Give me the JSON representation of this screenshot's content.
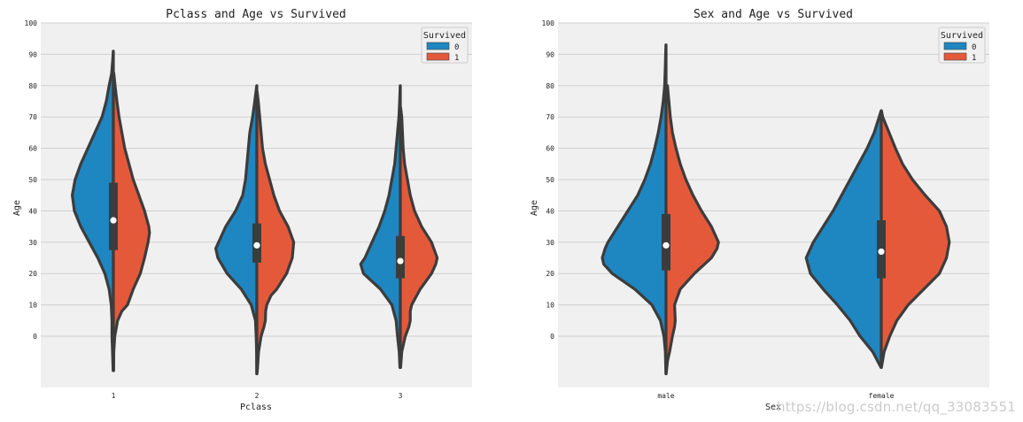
{
  "chart_data": [
    {
      "type": "violin",
      "title": "Pclass and Age vs Survived",
      "xlabel": "Pclass",
      "ylabel": "Age",
      "categories": [
        "1",
        "2",
        "3"
      ],
      "y_tick_labels": [
        "100",
        "90",
        "80",
        "70",
        "60",
        "50",
        "40",
        "30",
        "20",
        "10",
        "0"
      ],
      "ylim": [
        -12,
        102
      ],
      "split": true,
      "legend": {
        "title": "Survived",
        "position": "top-right",
        "entries": [
          {
            "label": "0",
            "color": "#1e86c0"
          },
          {
            "label": "1",
            "color": "#e5593b"
          }
        ]
      },
      "violins": [
        {
          "category": "1",
          "series_0": [
            [
              -11,
              0.2
            ],
            [
              -5,
              0.6
            ],
            [
              0,
              1
            ],
            [
              5,
              1
            ],
            [
              10,
              1.5
            ],
            [
              15,
              3
            ],
            [
              20,
              6
            ],
            [
              25,
              11
            ],
            [
              30,
              17
            ],
            [
              35,
              23
            ],
            [
              40,
              27.5
            ],
            [
              45,
              29
            ],
            [
              50,
              27
            ],
            [
              55,
              23
            ],
            [
              60,
              18
            ],
            [
              65,
              13
            ],
            [
              70,
              8
            ],
            [
              75,
              5
            ],
            [
              80,
              3
            ],
            [
              84,
              1.2
            ],
            [
              88,
              0.5
            ],
            [
              91,
              0.1
            ]
          ],
          "series_1": [
            [
              -11,
              0.2
            ],
            [
              -5,
              0.3
            ],
            [
              0,
              1
            ],
            [
              5,
              3
            ],
            [
              8,
              6
            ],
            [
              10,
              10
            ],
            [
              15,
              14
            ],
            [
              20,
              19
            ],
            [
              25,
              22
            ],
            [
              30,
              24.5
            ],
            [
              33,
              25.5
            ],
            [
              35,
              25
            ],
            [
              40,
              22
            ],
            [
              45,
              18
            ],
            [
              50,
              14
            ],
            [
              55,
              11
            ],
            [
              60,
              8
            ],
            [
              65,
              6
            ],
            [
              70,
              4
            ],
            [
              75,
              2.5
            ],
            [
              80,
              1.2
            ],
            [
              84,
              0.3
            ]
          ],
          "box": {
            "q1": 27.5,
            "median": 37,
            "q3": 49
          }
        },
        {
          "category": "2",
          "series_0": [
            [
              -12,
              0.1
            ],
            [
              -5,
              0.2
            ],
            [
              0,
              0.5
            ],
            [
              5,
              1
            ],
            [
              10,
              4
            ],
            [
              15,
              11
            ],
            [
              20,
              21
            ],
            [
              25,
              27.5
            ],
            [
              28,
              29
            ],
            [
              30,
              27
            ],
            [
              35,
              22
            ],
            [
              40,
              15
            ],
            [
              45,
              10
            ],
            [
              50,
              8
            ],
            [
              55,
              7
            ],
            [
              60,
              6
            ],
            [
              65,
              5
            ],
            [
              70,
              3
            ],
            [
              75,
              1.5
            ],
            [
              80,
              0.1
            ]
          ],
          "series_1": [
            [
              -12,
              0.1
            ],
            [
              -10,
              0.5
            ],
            [
              -5,
              1.2
            ],
            [
              0,
              3
            ],
            [
              3,
              5
            ],
            [
              5,
              6
            ],
            [
              8,
              6.2
            ],
            [
              10,
              7
            ],
            [
              13,
              10
            ],
            [
              15,
              14
            ],
            [
              20,
              21
            ],
            [
              25,
              25
            ],
            [
              30,
              26
            ],
            [
              35,
              22
            ],
            [
              40,
              16
            ],
            [
              45,
              12
            ],
            [
              50,
              9
            ],
            [
              55,
              6
            ],
            [
              60,
              4
            ],
            [
              65,
              3
            ],
            [
              70,
              2
            ],
            [
              75,
              1
            ],
            [
              78,
              0.2
            ]
          ],
          "box": {
            "q1": 23.5,
            "median": 29,
            "q3": 36
          }
        },
        {
          "category": "3",
          "series_0": [
            [
              -10,
              0.3
            ],
            [
              -5,
              0.8
            ],
            [
              0,
              2
            ],
            [
              5,
              3
            ],
            [
              10,
              6
            ],
            [
              15,
              14
            ],
            [
              20,
              26
            ],
            [
              23,
              28
            ],
            [
              25,
              25
            ],
            [
              30,
              20
            ],
            [
              35,
              15
            ],
            [
              40,
              11
            ],
            [
              45,
              8
            ],
            [
              50,
              6
            ],
            [
              55,
              4
            ],
            [
              60,
              3
            ],
            [
              65,
              2
            ],
            [
              70,
              1
            ],
            [
              75,
              0.5
            ],
            [
              80,
              0.1
            ]
          ],
          "series_1": [
            [
              -10,
              0.2
            ],
            [
              -5,
              1
            ],
            [
              0,
              3.5
            ],
            [
              3,
              6
            ],
            [
              5,
              7
            ],
            [
              8,
              7
            ],
            [
              10,
              8
            ],
            [
              15,
              14
            ],
            [
              20,
              22
            ],
            [
              23,
              25
            ],
            [
              25,
              26
            ],
            [
              30,
              22
            ],
            [
              35,
              15
            ],
            [
              40,
              10
            ],
            [
              45,
              7
            ],
            [
              50,
              5
            ],
            [
              55,
              3
            ],
            [
              60,
              2
            ],
            [
              65,
              1.5
            ],
            [
              70,
              1
            ],
            [
              73,
              0.2
            ]
          ],
          "box": {
            "q1": 18.5,
            "median": 24,
            "q3": 32
          }
        }
      ]
    },
    {
      "type": "violin",
      "title": "Sex and Age vs Survived",
      "xlabel": "Sex",
      "ylabel": "Age",
      "categories": [
        "male",
        "female"
      ],
      "y_tick_labels": [
        "100",
        "90",
        "80",
        "70",
        "60",
        "50",
        "40",
        "30",
        "20",
        "10",
        "0"
      ],
      "ylim": [
        -12,
        102
      ],
      "split": true,
      "legend": {
        "title": "Survived",
        "position": "top-right",
        "entries": [
          {
            "label": "0",
            "color": "#1e86c0"
          },
          {
            "label": "1",
            "color": "#e5593b"
          }
        ]
      },
      "violins": [
        {
          "category": "male",
          "series_0": [
            [
              -12,
              0.1
            ],
            [
              -5,
              0.5
            ],
            [
              0,
              1.5
            ],
            [
              5,
              4
            ],
            [
              10,
              10
            ],
            [
              15,
              22
            ],
            [
              20,
              38
            ],
            [
              23,
              44
            ],
            [
              25,
              45
            ],
            [
              28,
              43
            ],
            [
              30,
              41
            ],
            [
              35,
              34
            ],
            [
              40,
              27
            ],
            [
              45,
              20
            ],
            [
              50,
              15
            ],
            [
              55,
              11
            ],
            [
              60,
              8
            ],
            [
              65,
              5.5
            ],
            [
              70,
              3.5
            ],
            [
              75,
              2
            ],
            [
              80,
              1
            ],
            [
              85,
              0.6
            ],
            [
              90,
              0.3
            ],
            [
              93,
              0.1
            ]
          ],
          "series_1": [
            [
              -12,
              0.1
            ],
            [
              -8,
              1
            ],
            [
              -5,
              2.5
            ],
            [
              0,
              4.5
            ],
            [
              3,
              6
            ],
            [
              5,
              6.5
            ],
            [
              10,
              6
            ],
            [
              15,
              10
            ],
            [
              20,
              20
            ],
            [
              25,
              32
            ],
            [
              28,
              36
            ],
            [
              30,
              37
            ],
            [
              35,
              32
            ],
            [
              40,
              25
            ],
            [
              45,
              19
            ],
            [
              50,
              14
            ],
            [
              55,
              10
            ],
            [
              60,
              7
            ],
            [
              65,
              4.5
            ],
            [
              70,
              3
            ],
            [
              75,
              2
            ],
            [
              80,
              1
            ]
          ],
          "box": {
            "q1": 21,
            "median": 29,
            "q3": 39
          }
        },
        {
          "category": "female",
          "series_0": [
            [
              -10,
              0.2
            ],
            [
              -5,
              6
            ],
            [
              0,
              15
            ],
            [
              5,
              22
            ],
            [
              10,
              31
            ],
            [
              15,
              41
            ],
            [
              20,
              50
            ],
            [
              25,
              53
            ],
            [
              30,
              48
            ],
            [
              35,
              41
            ],
            [
              40,
              34
            ],
            [
              45,
              28
            ],
            [
              50,
              22
            ],
            [
              55,
              16
            ],
            [
              60,
              10
            ],
            [
              65,
              5
            ],
            [
              70,
              1.5
            ],
            [
              72,
              0.1
            ]
          ],
          "series_1": [
            [
              -10,
              0.1
            ],
            [
              -5,
              2
            ],
            [
              0,
              6
            ],
            [
              5,
              11
            ],
            [
              10,
              19
            ],
            [
              15,
              30
            ],
            [
              20,
              41
            ],
            [
              25,
              46
            ],
            [
              30,
              48
            ],
            [
              35,
              46
            ],
            [
              40,
              41
            ],
            [
              45,
              31
            ],
            [
              50,
              22
            ],
            [
              55,
              15
            ],
            [
              60,
              10
            ],
            [
              65,
              5.5
            ],
            [
              70,
              1
            ],
            [
              72,
              0.1
            ]
          ],
          "box": {
            "q1": 18.5,
            "median": 27,
            "q3": 37
          }
        }
      ]
    }
  ],
  "watermark": "https://blog.csdn.net/qq_33083551"
}
